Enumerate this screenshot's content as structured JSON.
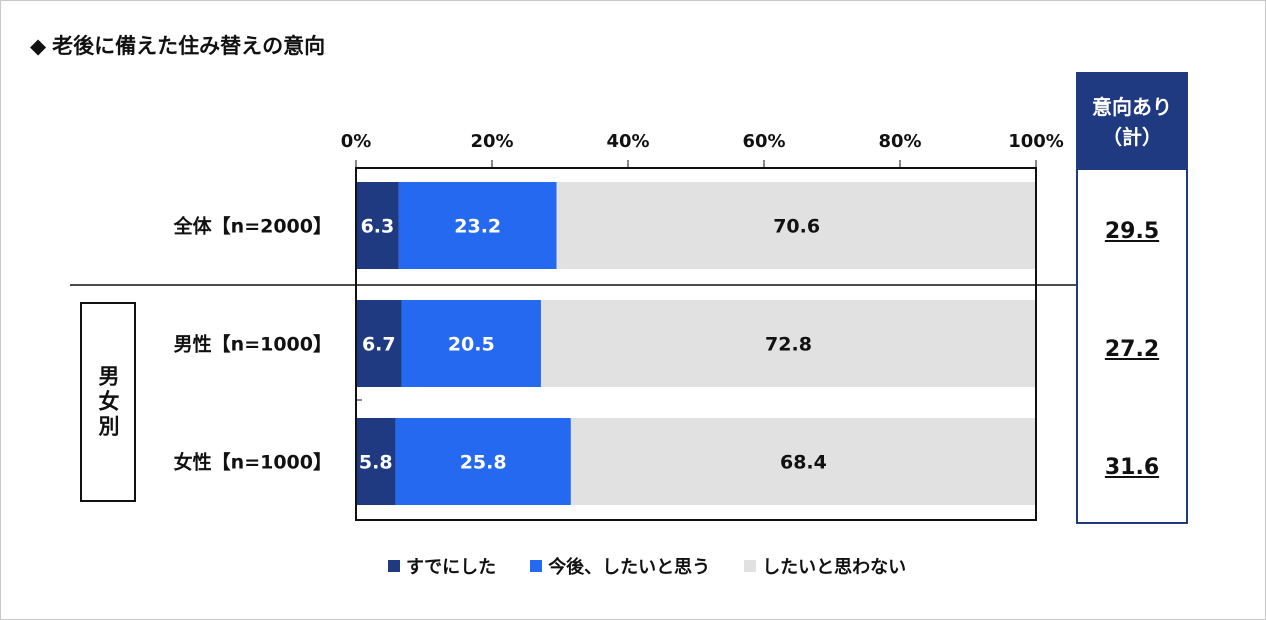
{
  "title": "老後に備えた住み替えの意向",
  "title_marker": "◆",
  "chart_data": {
    "type": "bar",
    "orientation": "horizontal",
    "stacked": true,
    "title": "老後に備えた住み替えの意向",
    "xlim": [
      0,
      100
    ],
    "x_ticks": [
      "0%",
      "20%",
      "40%",
      "60%",
      "80%",
      "100%"
    ],
    "categories": [
      "全体【n=2000】",
      "男性【n=1000】",
      "女性【n=1000】"
    ],
    "series": [
      {
        "name": "すでにした",
        "values": [
          6.3,
          6.7,
          5.8
        ],
        "color": "#1f3a80"
      },
      {
        "name": "今後、したいと思う",
        "values": [
          23.2,
          20.5,
          25.8
        ],
        "color": "#2469f0"
      },
      {
        "name": "したいと思わない",
        "values": [
          70.6,
          72.8,
          68.4
        ],
        "color": "#e1e1e1"
      }
    ],
    "legend_position": "bottom",
    "summary": {
      "label_line1": "意向あり",
      "label_line2": "（計）",
      "values": [
        "29.5",
        "27.2",
        "31.6"
      ]
    },
    "group_label": "男女別"
  }
}
